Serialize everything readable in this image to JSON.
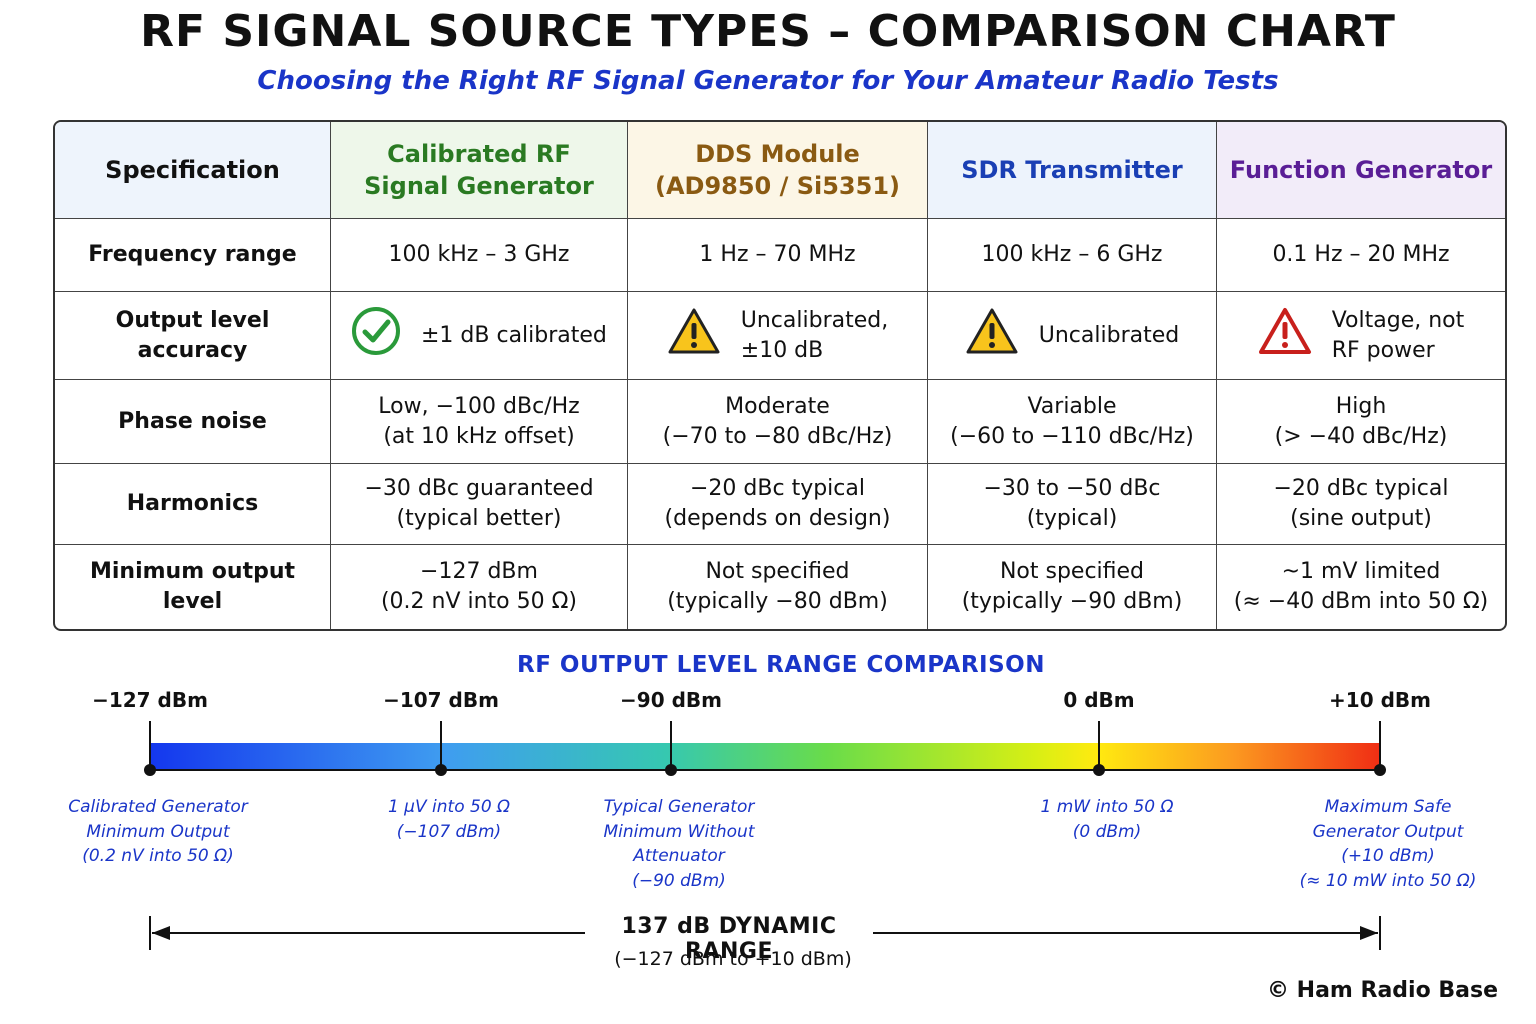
{
  "title": "RF SIGNAL SOURCE TYPES – COMPARISON CHART",
  "subtitle": "Choosing the Right RF Signal Generator for Your Amateur Radio Tests",
  "table": {
    "headers": [
      "Specification",
      "Calibrated RF\nSignal Generator",
      "DDS Module\n(AD9850 / Si5351)",
      "SDR Transmitter",
      "Function Generator"
    ],
    "header_colors": [
      "#111111",
      "#2a7a22",
      "#8a5a12",
      "#1a3fb4",
      "#5a1e96"
    ],
    "rows": [
      {
        "spec": "Frequency range",
        "cells": [
          "100 kHz – 3 GHz",
          "1 Hz – 70 MHz",
          "100 kHz – 6 GHz",
          "0.1 Hz – 20 MHz"
        ]
      },
      {
        "spec": "Output level accuracy",
        "cells": [
          "±1 dB calibrated",
          "Uncalibrated,\n±10 dB",
          "Uncalibrated",
          "Voltage, not\nRF power"
        ],
        "icons": [
          "check-circle-icon",
          "warning-icon",
          "warning-icon",
          "alert-red-icon"
        ]
      },
      {
        "spec": "Phase noise",
        "cells": [
          "Low, −100 dBc/Hz\n(at 10 kHz offset)",
          "Moderate\n(−70 to −80 dBc/Hz)",
          "Variable\n(−60 to −110 dBc/Hz)",
          "High\n(> −40 dBc/Hz)"
        ]
      },
      {
        "spec": "Harmonics",
        "cells": [
          "−30 dBc guaranteed\n(typical better)",
          "−20 dBc typical\n(depends on design)",
          "−30 to −50 dBc\n(typical)",
          "−20 dBc typical\n(sine output)"
        ]
      },
      {
        "spec": "Minimum output level",
        "cells": [
          "−127 dBm\n(0.2 nV into 50 Ω)",
          "Not specified\n(typically −80 dBm)",
          "Not specified\n(typically −90 dBm)",
          "~1 mV limited\n(≈ −40 dBm into 50 Ω)"
        ]
      }
    ]
  },
  "range": {
    "title": "RF OUTPUT LEVEL RANGE COMPARISON",
    "min_dbm": -127,
    "max_dbm": 10,
    "gradient_colors": [
      "#1437ee",
      "#3f9df0",
      "#36c8b0",
      "#69dc4a",
      "#d8ef14",
      "#ffea10",
      "#fc9a20",
      "#f02e14"
    ],
    "markers": [
      {
        "dbm": -127,
        "label": "−127 dBm",
        "annotation": "Calibrated Generator\nMinimum Output\n(0.2 nV into 50 Ω)"
      },
      {
        "dbm": -107,
        "label": "−107 dBm",
        "annotation": "1 μV into 50 Ω\n(−107 dBm)"
      },
      {
        "dbm": -90,
        "label": "−90 dBm",
        "annotation": "Typical Generator\nMinimum Without\nAttenuator\n(−90 dBm)"
      },
      {
        "dbm": 0,
        "label": "0 dBm",
        "annotation": "1 mW into 50 Ω\n(0 dBm)"
      },
      {
        "dbm": 10,
        "label": "+10 dBm",
        "annotation": "Maximum Safe\nGenerator Output\n(+10 dBm)\n(≈ 10 mW into 50 Ω)"
      }
    ],
    "dynamic_range_label": "137 dB DYNAMIC RANGE",
    "dynamic_range_sub": "(−127 dBm to +10 dBm)"
  },
  "credit": "© Ham Radio Base"
}
